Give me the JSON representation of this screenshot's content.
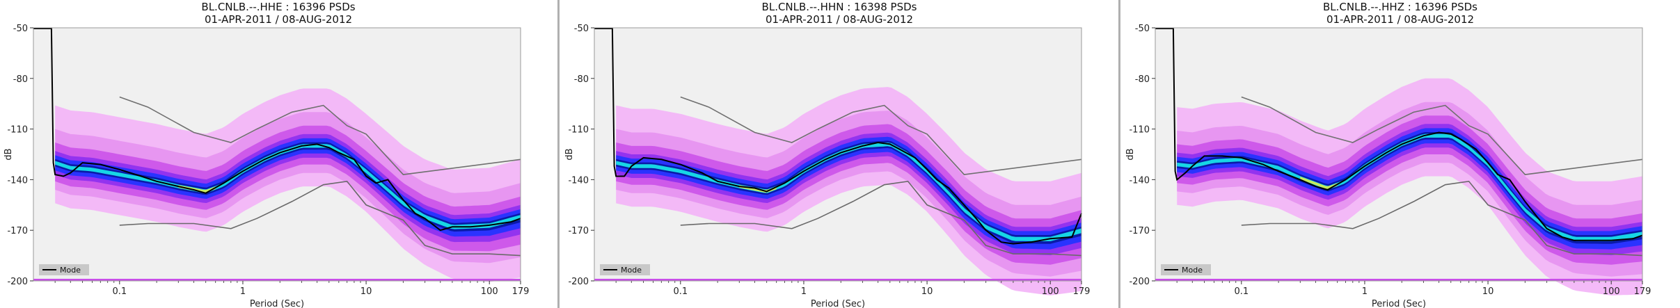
{
  "chart_data": [
    {
      "type": "heatmap",
      "title_line1": "BL.CNLB.--.HHE : 16396 PSDs",
      "title_line2": "01-APR-2011 / 08-AUG-2012",
      "xlabel": "Period (Sec)",
      "ylabel": "dB",
      "x_scale": "log",
      "xlim": [
        0.02,
        179
      ],
      "ylim": [
        -200,
        -50
      ],
      "yticks": [
        -50,
        -80,
        -110,
        -140,
        -170,
        -200
      ],
      "xticks": [
        {
          "v": 0.1,
          "label": "0.1"
        },
        {
          "v": 1,
          "label": "1"
        },
        {
          "v": 10,
          "label": "10"
        },
        {
          "v": 100,
          "label": "100"
        },
        {
          "v": 179,
          "label": "179"
        }
      ],
      "legend": {
        "position": "bottom-left",
        "entries": [
          "Mode"
        ]
      },
      "colors": {
        "background": "#f0f0f0",
        "pale": "#f3b3f7",
        "light": "#e48ff0",
        "mid": "#c94fe9",
        "deep": "#8d2ff0",
        "blue": "#2434ff",
        "dark": "#0a1aa8",
        "cyan": "#18e0e8",
        "yellow": "#e6ee46"
      },
      "mode": {
        "x": [
          0.02,
          0.025,
          0.028,
          0.029,
          0.03,
          0.035,
          0.04,
          0.05,
          0.07,
          0.1,
          0.15,
          0.2,
          0.3,
          0.4,
          0.5,
          0.7,
          1,
          1.5,
          2,
          3,
          4,
          5,
          6,
          8,
          10,
          12,
          15,
          20,
          25,
          30,
          40,
          50,
          70,
          100,
          150,
          179
        ],
        "y": [
          -50,
          -50,
          -50,
          -130,
          -137,
          -138,
          -136,
          -130,
          -131,
          -134,
          -138,
          -141,
          -144,
          -146,
          -148,
          -142,
          -135,
          -128,
          -124,
          -120,
          -119,
          -121,
          -124,
          -128,
          -138,
          -142,
          -140,
          -152,
          -160,
          -163,
          -170,
          -168,
          -168,
          -167,
          -165,
          -163
        ]
      },
      "center": {
        "x": [
          0.03,
          0.04,
          0.06,
          0.1,
          0.2,
          0.3,
          0.5,
          0.7,
          1,
          1.5,
          2,
          3,
          5,
          7,
          10,
          15,
          20,
          30,
          50,
          100,
          179
        ],
        "y": [
          -130,
          -133,
          -134,
          -137,
          -141,
          -144,
          -147,
          -143,
          -135,
          -128,
          -124,
          -120,
          -120,
          -126,
          -135,
          -146,
          -154,
          -162,
          -168,
          -167,
          -162
        ]
      },
      "nhnm": {
        "x": [
          0.1,
          0.17,
          0.4,
          0.8,
          1.3,
          2.5,
          4.5,
          7,
          10,
          20,
          179
        ],
        "y": [
          -91,
          -97,
          -112,
          -118,
          -110,
          -100,
          -96,
          -108,
          -113,
          -137,
          -128
        ]
      },
      "nlnm": {
        "x": [
          0.1,
          0.17,
          0.4,
          0.8,
          1.3,
          2.5,
          4.5,
          7,
          10,
          20,
          30,
          50,
          100,
          179
        ],
        "y": [
          -167,
          -166,
          -166,
          -169,
          -163,
          -153,
          -143,
          -141,
          -155,
          -164,
          -179,
          -184,
          -184,
          -185
        ]
      }
    },
    {
      "type": "heatmap",
      "title_line1": "BL.CNLB.--.HHN : 16398 PSDs",
      "title_line2": "01-APR-2011 / 08-AUG-2012",
      "xlabel": "Period (Sec)",
      "ylabel": "dB",
      "x_scale": "log",
      "xlim": [
        0.02,
        179
      ],
      "ylim": [
        -200,
        -50
      ],
      "yticks": [
        -50,
        -80,
        -110,
        -140,
        -170,
        -200
      ],
      "xticks": [
        {
          "v": 0.1,
          "label": "0.1"
        },
        {
          "v": 1,
          "label": "1"
        },
        {
          "v": 10,
          "label": "10"
        },
        {
          "v": 100,
          "label": "100"
        },
        {
          "v": 179,
          "label": "179"
        }
      ],
      "legend": {
        "position": "bottom-left",
        "entries": [
          "Mode"
        ]
      },
      "colors": {
        "background": "#f0f0f0",
        "pale": "#f3b3f7",
        "light": "#e48ff0",
        "mid": "#c94fe9",
        "deep": "#8d2ff0",
        "blue": "#2434ff",
        "dark": "#0a1aa8",
        "cyan": "#18e0e8",
        "yellow": "#e6ee46"
      },
      "mode": {
        "x": [
          0.02,
          0.025,
          0.028,
          0.029,
          0.03,
          0.035,
          0.04,
          0.05,
          0.07,
          0.1,
          0.15,
          0.2,
          0.3,
          0.4,
          0.5,
          0.7,
          1,
          1.5,
          2,
          3,
          4,
          5,
          6,
          8,
          10,
          12,
          15,
          20,
          25,
          30,
          40,
          50,
          70,
          100,
          150,
          179
        ],
        "y": [
          -50,
          -50,
          -50,
          -132,
          -138,
          -138,
          -132,
          -127,
          -128,
          -131,
          -136,
          -141,
          -144,
          -145,
          -147,
          -142,
          -135,
          -128,
          -124,
          -120,
          -118,
          -119,
          -122,
          -127,
          -134,
          -140,
          -145,
          -155,
          -163,
          -170,
          -177,
          -178,
          -177,
          -175,
          -174,
          -160
        ]
      },
      "center": {
        "x": [
          0.03,
          0.04,
          0.06,
          0.1,
          0.2,
          0.3,
          0.5,
          0.7,
          1,
          1.5,
          2,
          3,
          5,
          7,
          10,
          15,
          20,
          30,
          50,
          100,
          179
        ],
        "y": [
          -130,
          -132,
          -132,
          -135,
          -141,
          -144,
          -147,
          -143,
          -135,
          -128,
          -124,
          -120,
          -119,
          -125,
          -135,
          -148,
          -158,
          -168,
          -175,
          -175,
          -170
        ]
      },
      "nhnm": {
        "x": [
          0.1,
          0.17,
          0.4,
          0.8,
          1.3,
          2.5,
          4.5,
          7,
          10,
          20,
          179
        ],
        "y": [
          -91,
          -97,
          -112,
          -118,
          -110,
          -100,
          -96,
          -108,
          -113,
          -137,
          -128
        ]
      },
      "nlnm": {
        "x": [
          0.1,
          0.17,
          0.4,
          0.8,
          1.3,
          2.5,
          4.5,
          7,
          10,
          20,
          30,
          50,
          100,
          179
        ],
        "y": [
          -167,
          -166,
          -166,
          -169,
          -163,
          -153,
          -143,
          -141,
          -155,
          -164,
          -179,
          -184,
          -184,
          -185
        ]
      }
    },
    {
      "type": "heatmap",
      "title_line1": "BL.CNLB.--.HHZ : 16396 PSDs",
      "title_line2": "01-APR-2011 / 08-AUG-2012",
      "xlabel": "Period (Sec)",
      "ylabel": "dB",
      "x_scale": "log",
      "xlim": [
        0.02,
        179
      ],
      "ylim": [
        -200,
        -50
      ],
      "yticks": [
        -50,
        -80,
        -110,
        -140,
        -170,
        -200
      ],
      "xticks": [
        {
          "v": 0.1,
          "label": "0.1"
        },
        {
          "v": 1,
          "label": "1"
        },
        {
          "v": 10,
          "label": "10"
        },
        {
          "v": 100,
          "label": "100"
        },
        {
          "v": 179,
          "label": "179"
        }
      ],
      "legend": {
        "position": "bottom-left",
        "entries": [
          "Mode"
        ]
      },
      "colors": {
        "background": "#f0f0f0",
        "pale": "#f3b3f7",
        "light": "#e48ff0",
        "mid": "#c94fe9",
        "deep": "#8d2ff0",
        "blue": "#2434ff",
        "dark": "#0a1aa8",
        "cyan": "#18e0e8",
        "yellow": "#e6ee46"
      },
      "mode": {
        "x": [
          0.02,
          0.025,
          0.028,
          0.029,
          0.03,
          0.035,
          0.04,
          0.05,
          0.07,
          0.1,
          0.15,
          0.2,
          0.3,
          0.4,
          0.5,
          0.7,
          1,
          1.5,
          2,
          3,
          4,
          5,
          6,
          8,
          10,
          12,
          15,
          20,
          25,
          30,
          40,
          50,
          70,
          100,
          150,
          179
        ],
        "y": [
          -50,
          -50,
          -50,
          -135,
          -140,
          -136,
          -132,
          -126,
          -126,
          -127,
          -131,
          -135,
          -140,
          -144,
          -146,
          -140,
          -132,
          -124,
          -119,
          -114,
          -112,
          -113,
          -116,
          -122,
          -130,
          -137,
          -140,
          -153,
          -162,
          -169,
          -174,
          -176,
          -176,
          -176,
          -175,
          -173
        ]
      },
      "center": {
        "x": [
          0.03,
          0.04,
          0.06,
          0.1,
          0.2,
          0.3,
          0.5,
          0.7,
          1,
          1.5,
          2,
          3,
          5,
          7,
          10,
          15,
          20,
          30,
          50,
          100,
          179
        ],
        "y": [
          -131,
          -132,
          -129,
          -128,
          -133,
          -139,
          -145,
          -141,
          -132,
          -124,
          -119,
          -114,
          -114,
          -121,
          -131,
          -147,
          -158,
          -169,
          -175,
          -175,
          -172
        ]
      },
      "nhnm": {
        "x": [
          0.1,
          0.17,
          0.4,
          0.8,
          1.3,
          2.5,
          4.5,
          7,
          10,
          20,
          179
        ],
        "y": [
          -91,
          -97,
          -112,
          -118,
          -110,
          -100,
          -96,
          -108,
          -113,
          -137,
          -128
        ]
      },
      "nlnm": {
        "x": [
          0.1,
          0.17,
          0.4,
          0.8,
          1.3,
          2.5,
          4.5,
          7,
          10,
          20,
          30,
          50,
          100,
          179
        ],
        "y": [
          -167,
          -166,
          -166,
          -169,
          -163,
          -153,
          -143,
          -141,
          -155,
          -164,
          -179,
          -184,
          -184,
          -185
        ]
      }
    }
  ]
}
